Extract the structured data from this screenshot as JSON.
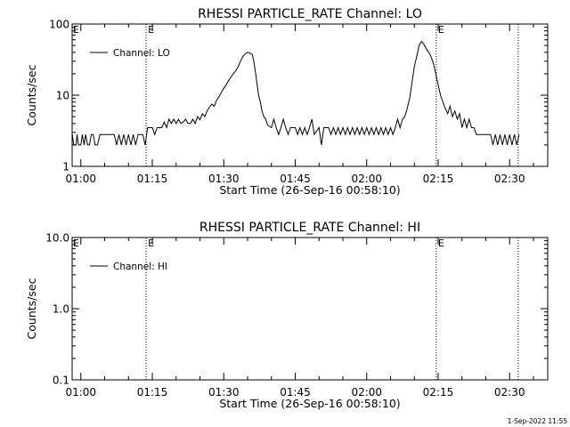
{
  "footer_timestamp": "1-Sep-2022 11:55",
  "chart_data": [
    {
      "type": "line",
      "title": "RHESSI PARTICLE_RATE Channel: LO",
      "xlabel": "Start Time (26-Sep-16 00:58:10)",
      "ylabel": "Counts/sec",
      "x_unit": "minutes after 01:00",
      "xlim": [
        -1.83,
        98
      ],
      "ylim": [
        1,
        100
      ],
      "y_scale": "log",
      "x_ticks": [
        {
          "v": 0,
          "label": "01:00"
        },
        {
          "v": 15,
          "label": "01:15"
        },
        {
          "v": 30,
          "label": "01:30"
        },
        {
          "v": 45,
          "label": "01:45"
        },
        {
          "v": 60,
          "label": "02:00"
        },
        {
          "v": 75,
          "label": "02:15"
        },
        {
          "v": 90,
          "label": "02:30"
        }
      ],
      "y_ticks": [
        {
          "v": 1,
          "label": "1"
        },
        {
          "v": 10,
          "label": "10"
        },
        {
          "v": 100,
          "label": "100"
        }
      ],
      "legend": "top-left",
      "vlines": [
        {
          "x": 13.7,
          "label": "E"
        },
        {
          "x": 74.6,
          "label": "E"
        },
        {
          "x": 91.8,
          "label": ""
        }
      ],
      "series": [
        {
          "name": "Channel: LO",
          "points": [
            [
              -1.8,
              2.8
            ],
            [
              -1.5,
              2.0
            ],
            [
              -1.0,
              2.0
            ],
            [
              -0.8,
              2.8
            ],
            [
              -0.5,
              2.0
            ],
            [
              0.0,
              2.0
            ],
            [
              0.3,
              2.8
            ],
            [
              0.7,
              2.0
            ],
            [
              1.0,
              2.8
            ],
            [
              1.4,
              2.0
            ],
            [
              1.8,
              2.0
            ],
            [
              2.2,
              2.8
            ],
            [
              2.6,
              2.8
            ],
            [
              3.0,
              2.0
            ],
            [
              3.5,
              2.0
            ],
            [
              4.0,
              2.8
            ],
            [
              5.0,
              2.8
            ],
            [
              6.0,
              2.8
            ],
            [
              7.0,
              2.8
            ],
            [
              7.5,
              2.0
            ],
            [
              8.0,
              2.8
            ],
            [
              8.5,
              2.0
            ],
            [
              9.0,
              2.8
            ],
            [
              9.5,
              2.0
            ],
            [
              10.0,
              2.8
            ],
            [
              10.5,
              2.0
            ],
            [
              11.0,
              2.8
            ],
            [
              11.5,
              2.0
            ],
            [
              12.0,
              2.8
            ],
            [
              13.0,
              2.8
            ],
            [
              13.5,
              2.0
            ],
            [
              14.0,
              3.5
            ],
            [
              15.0,
              3.5
            ],
            [
              15.5,
              2.8
            ],
            [
              16.0,
              3.5
            ],
            [
              17.0,
              3.5
            ],
            [
              17.5,
              4.2
            ],
            [
              18.0,
              3.5
            ],
            [
              18.5,
              4.6
            ],
            [
              19.0,
              4.0
            ],
            [
              19.5,
              4.6
            ],
            [
              20.0,
              4.0
            ],
            [
              20.5,
              4.6
            ],
            [
              21.0,
              4.0
            ],
            [
              21.5,
              4.2
            ],
            [
              22.0,
              4.6
            ],
            [
              22.5,
              4.0
            ],
            [
              23.0,
              4.0
            ],
            [
              23.5,
              4.6
            ],
            [
              24.0,
              4.0
            ],
            [
              24.5,
              5.0
            ],
            [
              25.0,
              4.5
            ],
            [
              25.5,
              5.5
            ],
            [
              26.0,
              5.0
            ],
            [
              26.5,
              6.0
            ],
            [
              27.0,
              6.8
            ],
            [
              27.5,
              7.5
            ],
            [
              28.0,
              7.0
            ],
            [
              28.5,
              8.5
            ],
            [
              29.0,
              9.5
            ],
            [
              29.5,
              11.0
            ],
            [
              30.0,
              12.5
            ],
            [
              30.5,
              14.0
            ],
            [
              31.0,
              16.0
            ],
            [
              31.5,
              18.0
            ],
            [
              32.0,
              20.0
            ],
            [
              32.5,
              22.0
            ],
            [
              33.0,
              25.0
            ],
            [
              33.5,
              30.0
            ],
            [
              34.0,
              35.0
            ],
            [
              34.5,
              38.0
            ],
            [
              35.0,
              40.0
            ],
            [
              35.5,
              39.0
            ],
            [
              36.0,
              37.0
            ],
            [
              36.3,
              30.0
            ],
            [
              36.7,
              20.0
            ],
            [
              37.0,
              14.0
            ],
            [
              37.3,
              10.0
            ],
            [
              37.7,
              8.0
            ],
            [
              38.0,
              6.0
            ],
            [
              38.4,
              5.0
            ],
            [
              38.8,
              4.6
            ],
            [
              39.2,
              3.8
            ],
            [
              40.0,
              3.5
            ],
            [
              40.5,
              4.6
            ],
            [
              41.0,
              3.5
            ],
            [
              41.5,
              2.8
            ],
            [
              42.0,
              3.5
            ],
            [
              42.5,
              4.6
            ],
            [
              43.0,
              3.5
            ],
            [
              43.5,
              2.8
            ],
            [
              44.0,
              3.5
            ],
            [
              45.0,
              3.5
            ],
            [
              45.5,
              2.8
            ],
            [
              46.0,
              3.5
            ],
            [
              46.5,
              2.8
            ],
            [
              47.0,
              3.5
            ],
            [
              47.5,
              2.8
            ],
            [
              48.0,
              3.5
            ],
            [
              48.5,
              4.6
            ],
            [
              49.0,
              2.8
            ],
            [
              50.0,
              3.5
            ],
            [
              50.5,
              2.0
            ],
            [
              51.0,
              3.5
            ],
            [
              52.0,
              3.5
            ],
            [
              52.5,
              2.8
            ],
            [
              53.0,
              3.5
            ],
            [
              53.5,
              2.8
            ],
            [
              54.0,
              3.5
            ],
            [
              54.5,
              2.8
            ],
            [
              55.0,
              3.5
            ],
            [
              55.5,
              2.8
            ],
            [
              56.0,
              3.5
            ],
            [
              56.5,
              2.8
            ],
            [
              57.0,
              3.5
            ],
            [
              57.5,
              2.8
            ],
            [
              58.0,
              3.5
            ],
            [
              58.5,
              2.8
            ],
            [
              59.0,
              3.5
            ],
            [
              59.5,
              2.8
            ],
            [
              60.0,
              3.5
            ],
            [
              60.5,
              2.8
            ],
            [
              61.0,
              3.5
            ],
            [
              61.5,
              2.8
            ],
            [
              62.0,
              3.5
            ],
            [
              62.5,
              2.8
            ],
            [
              63.0,
              3.5
            ],
            [
              63.5,
              2.8
            ],
            [
              64.0,
              3.5
            ],
            [
              64.5,
              2.8
            ],
            [
              65.0,
              3.5
            ],
            [
              65.5,
              2.8
            ],
            [
              66.0,
              3.5
            ],
            [
              66.5,
              4.6
            ],
            [
              67.0,
              3.5
            ],
            [
              67.5,
              4.6
            ],
            [
              68.0,
              5.0
            ],
            [
              68.5,
              6.5
            ],
            [
              69.0,
              9.0
            ],
            [
              69.5,
              15.0
            ],
            [
              70.0,
              25.0
            ],
            [
              70.5,
              35.0
            ],
            [
              71.0,
              50.0
            ],
            [
              71.5,
              57.0
            ],
            [
              72.0,
              52.0
            ],
            [
              72.5,
              45.0
            ],
            [
              73.0,
              40.0
            ],
            [
              73.5,
              35.0
            ],
            [
              74.0,
              28.0
            ],
            [
              74.5,
              20.0
            ],
            [
              75.0,
              14.0
            ],
            [
              75.5,
              10.0
            ],
            [
              76.0,
              8.0
            ],
            [
              76.5,
              6.5
            ],
            [
              77.0,
              5.5
            ],
            [
              77.5,
              7.0
            ],
            [
              78.0,
              5.0
            ],
            [
              78.5,
              6.0
            ],
            [
              79.0,
              4.6
            ],
            [
              79.5,
              5.5
            ],
            [
              80.0,
              3.5
            ],
            [
              80.5,
              4.6
            ],
            [
              81.0,
              3.5
            ],
            [
              81.5,
              4.6
            ],
            [
              82.0,
              3.5
            ],
            [
              82.5,
              3.5
            ],
            [
              83.0,
              2.8
            ],
            [
              84.0,
              2.8
            ],
            [
              85.0,
              2.8
            ],
            [
              86.0,
              2.8
            ],
            [
              86.5,
              2.0
            ],
            [
              87.0,
              2.8
            ],
            [
              87.5,
              2.0
            ],
            [
              88.0,
              2.8
            ],
            [
              88.5,
              2.0
            ],
            [
              89.0,
              2.8
            ],
            [
              89.5,
              2.0
            ],
            [
              90.0,
              2.8
            ],
            [
              90.5,
              2.0
            ],
            [
              91.0,
              2.8
            ],
            [
              91.5,
              2.0
            ],
            [
              92.0,
              2.8
            ]
          ]
        }
      ]
    },
    {
      "type": "line",
      "title": "RHESSI PARTICLE_RATE Channel: HI",
      "xlabel": "Start Time (26-Sep-16 00:58:10)",
      "ylabel": "Counts/sec",
      "x_unit": "minutes after 01:00",
      "xlim": [
        -1.83,
        98
      ],
      "ylim": [
        0.1,
        10
      ],
      "y_scale": "log",
      "x_ticks": [
        {
          "v": 0,
          "label": "01:00"
        },
        {
          "v": 15,
          "label": "01:15"
        },
        {
          "v": 30,
          "label": "01:30"
        },
        {
          "v": 45,
          "label": "01:45"
        },
        {
          "v": 60,
          "label": "02:00"
        },
        {
          "v": 75,
          "label": "02:15"
        },
        {
          "v": 90,
          "label": "02:30"
        }
      ],
      "y_ticks": [
        {
          "v": 0.1,
          "label": "0.1"
        },
        {
          "v": 1,
          "label": "1.0"
        },
        {
          "v": 10,
          "label": "10.0"
        }
      ],
      "legend": "top-left",
      "vlines": [
        {
          "x": 13.7,
          "label": "E"
        },
        {
          "x": 74.6,
          "label": "E"
        },
        {
          "x": 91.8,
          "label": ""
        }
      ],
      "series": [
        {
          "name": "Channel: HI",
          "points": []
        }
      ]
    }
  ]
}
